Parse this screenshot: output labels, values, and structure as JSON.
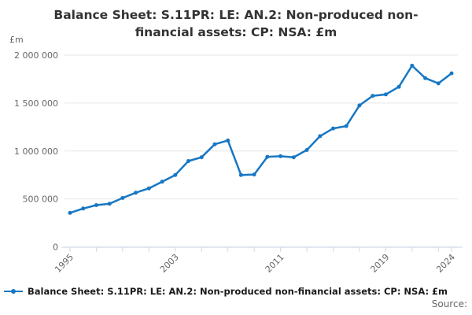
{
  "colors": {
    "series": "#1777c4",
    "grid": "#e6e6e6",
    "axis": "#ccd6eb",
    "tick_label": "#666666",
    "title": "#333333",
    "legend_text": "#1a1a1a",
    "background": "#ffffff"
  },
  "chart_data": {
    "type": "line",
    "title": "Balance Sheet: S.11PR: LE: AN.2: Non-produced non-financial assets: CP: NSA: £m",
    "ylabel": "£m",
    "xlabel": "",
    "x": [
      1995,
      1996,
      1997,
      1998,
      1999,
      2000,
      2001,
      2002,
      2003,
      2004,
      2005,
      2006,
      2007,
      2008,
      2009,
      2010,
      2011,
      2012,
      2013,
      2014,
      2015,
      2016,
      2017,
      2018,
      2019,
      2020,
      2021,
      2022,
      2023,
      2024
    ],
    "series": [
      {
        "name": "Balance Sheet: S.11PR: LE: AN.2: Non-produced non-financial assets: CP: NSA: £m",
        "values": [
          355000,
          400000,
          435000,
          450000,
          510000,
          565000,
          610000,
          680000,
          750000,
          895000,
          935000,
          1070000,
          1110000,
          750000,
          755000,
          940000,
          945000,
          935000,
          1010000,
          1155000,
          1235000,
          1260000,
          1475000,
          1575000,
          1590000,
          1670000,
          1890000,
          1760000,
          1705000,
          1810000
        ]
      }
    ],
    "ylim": [
      0,
      2000000
    ],
    "yticks": [
      {
        "value": 0,
        "label": "0"
      },
      {
        "value": 500000,
        "label": "500 000"
      },
      {
        "value": 1000000,
        "label": "1 000 000"
      },
      {
        "value": 1500000,
        "label": "1 500 000"
      },
      {
        "value": 2000000,
        "label": "2 000 000"
      }
    ],
    "xtick_years": [
      1995,
      1997,
      1999,
      2001,
      2003,
      2005,
      2007,
      2009,
      2011,
      2013,
      2015,
      2017,
      2019,
      2021,
      2023,
      2024
    ],
    "xtick_labels": [
      1995,
      2003,
      2011,
      2019,
      2024
    ],
    "grid": true,
    "legend_position": "bottom-left",
    "marker": "circle"
  },
  "footer": {
    "source_label": "Source:"
  }
}
